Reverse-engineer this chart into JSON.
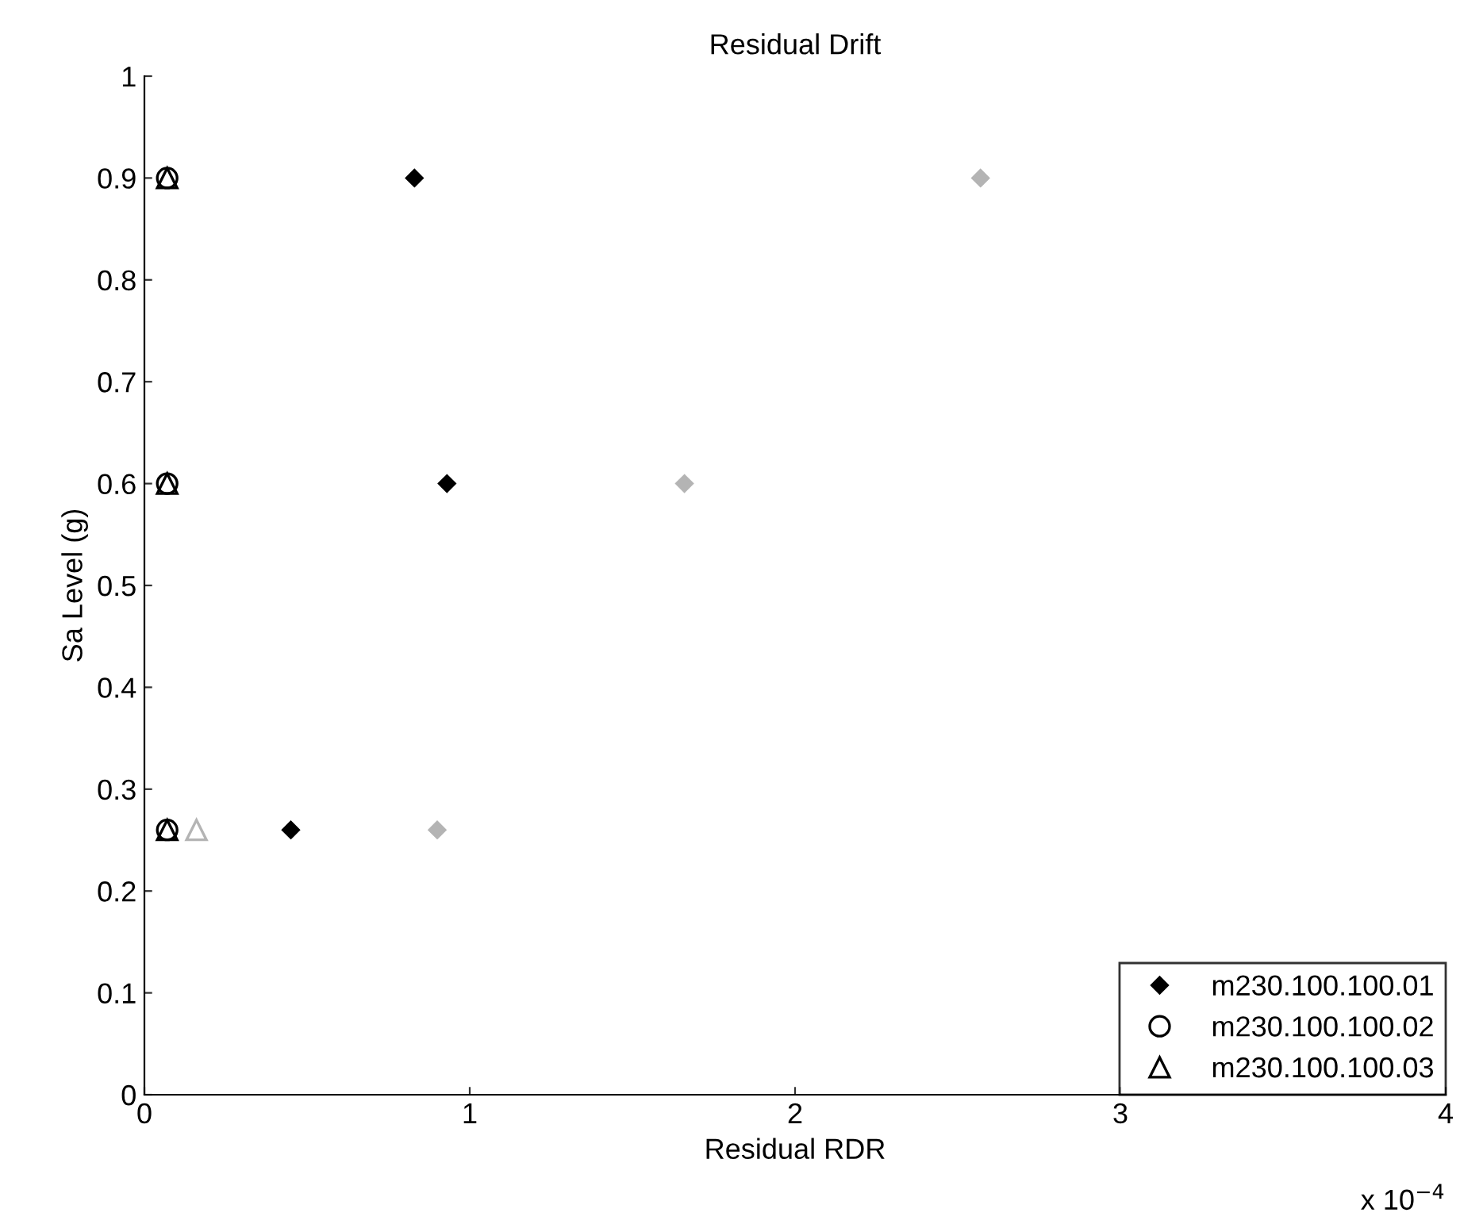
{
  "chart_data": {
    "type": "scatter",
    "title": "Residual Drift",
    "xlabel": "Residual RDR",
    "ylabel": "Sa Level (g)",
    "annotations": [
      "x 10$^{−4}$"
    ],
    "xlim": [
      0,
      4
    ],
    "xticks": [
      0,
      1,
      2,
      3,
      4
    ],
    "ylim": [
      0,
      1
    ],
    "yticks": [
      0,
      0.1,
      0.2,
      0.3,
      0.4,
      0.5,
      0.6,
      0.7,
      0.8,
      0.9,
      1
    ],
    "grid": false,
    "legend": "bottom right",
    "series": [
      {
        "name": "m230.100.100.01",
        "color": "#000000",
        "marker": "diamond",
        "x": [
          0.83,
          0.93,
          0.45
        ],
        "values": [
          0.9,
          0.6,
          0.26
        ]
      },
      {
        "name": "m230.100.100.02",
        "color": "#000000",
        "marker": "circle",
        "x": [
          0.07,
          0.07,
          0.07
        ],
        "values": [
          0.9,
          0.6,
          0.26
        ]
      },
      {
        "name": "m230.100.100.03",
        "color": "#000000",
        "marker": "triangle",
        "x": [
          0.07,
          0.07,
          0.07
        ],
        "values": [
          0.9,
          0.6,
          0.26
        ]
      },
      {
        "color": "#b4b4b4",
        "marker": "diamond",
        "x": [
          2.57,
          1.66,
          0.9
        ],
        "values": [
          0.9,
          0.6,
          0.26
        ]
      },
      {
        "color": "#b4b4b4",
        "marker": "triangle",
        "x": [
          0.16
        ],
        "values": [
          0.26
        ]
      }
    ]
  }
}
